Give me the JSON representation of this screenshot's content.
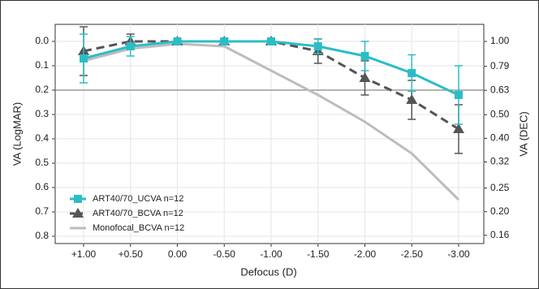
{
  "chart_data": {
    "type": "line",
    "x_label": "Defocus (D)",
    "y_label": "VA (LogMAR)",
    "y2_label": "VA (DEC)",
    "categories": [
      "+1.00",
      "+0.50",
      "0.00",
      "-0.50",
      "-1.00",
      "-1.50",
      "-2.00",
      "-2.50",
      "-3.00"
    ],
    "series": [
      {
        "name": "ART40/70_UCVA n=12",
        "color": "#2bbdc6",
        "marker": "square",
        "dashed": false,
        "values": [
          0.07,
          0.02,
          0.0,
          0.0,
          0.0,
          0.02,
          0.06,
          0.13,
          0.22
        ],
        "errors": [
          0.1,
          0.04,
          0.01,
          0.01,
          0.01,
          0.03,
          0.06,
          0.075,
          0.12
        ]
      },
      {
        "name": "ART40/70_BCVA n=12",
        "color": "#555555",
        "marker": "triangle",
        "dashed": true,
        "values": [
          0.04,
          0.0,
          0.0,
          0.0,
          0.0,
          0.04,
          0.15,
          0.24,
          0.36
        ],
        "errors": [
          0.1,
          0.03,
          0.01,
          0.01,
          0.01,
          0.05,
          0.07,
          0.08,
          0.1
        ]
      },
      {
        "name": "Monofocal_BCVA n=12",
        "color": "#bdbdbd",
        "marker": "none",
        "dashed": false,
        "values": [
          0.08,
          0.03,
          0.01,
          0.02,
          0.12,
          0.22,
          0.33,
          0.46,
          0.65
        ]
      }
    ],
    "ylim": [
      -0.07,
      0.83
    ],
    "y_inverted": true,
    "yticks": [
      {
        "value": 0,
        "label": "0.0"
      },
      {
        "value": 0.1,
        "label": "0.1"
      },
      {
        "value": 0.2,
        "label": "0.2"
      },
      {
        "value": 0.3,
        "label": "0.3"
      },
      {
        "value": 0.4,
        "label": "0.4"
      },
      {
        "value": 0.5,
        "label": "0.5"
      },
      {
        "value": 0.6,
        "label": "0.6"
      },
      {
        "value": 0.7,
        "label": "0.7"
      },
      {
        "value": 0.8,
        "label": "0.8"
      }
    ],
    "y2lim": [
      1.175,
      0.148
    ],
    "y2_log": true,
    "y2ticks": [
      {
        "value": 1,
        "label": "1.00"
      },
      {
        "value": 0.79,
        "label": "0.79"
      },
      {
        "value": 0.63,
        "label": "0.63"
      },
      {
        "value": 0.5,
        "label": "0.50"
      },
      {
        "value": 0.4,
        "label": "0.40"
      },
      {
        "value": 0.32,
        "label": "0.32"
      },
      {
        "value": 0.25,
        "label": "0.25"
      },
      {
        "value": 0.2,
        "label": "0.20"
      },
      {
        "value": 0.16,
        "label": "0.16"
      }
    ],
    "reference_line": 0.2,
    "grid": true,
    "legend": "bottom-left"
  }
}
